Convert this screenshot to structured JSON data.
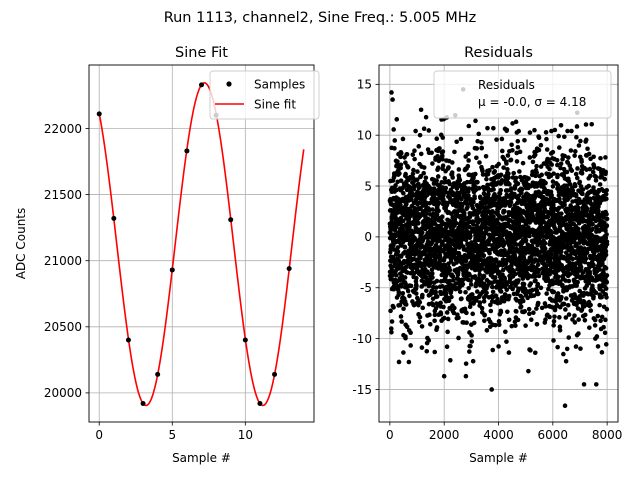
{
  "suptitle": "Run 1113, channel2, Sine Freq.: 5.005 MHz",
  "chart_data": [
    {
      "type": "line",
      "title": "Sine Fit",
      "xlabel": "Sample #",
      "ylabel": "ADC Counts",
      "xlim": [
        -0.7,
        14.7
      ],
      "ylim": [
        19780,
        22480
      ],
      "xticks": [
        0,
        5,
        10
      ],
      "yticks": [
        20000,
        20500,
        21000,
        21500,
        22000
      ],
      "grid": true,
      "legend": {
        "placement": "top-right",
        "entries": [
          "Samples",
          "Sine fit"
        ]
      },
      "series": [
        {
          "name": "Samples",
          "kind": "scatter",
          "color": "#000000",
          "x": [
            0,
            1,
            2,
            3,
            4,
            5,
            6,
            7,
            8,
            9,
            10,
            11,
            12,
            13
          ],
          "y": [
            22110,
            21320,
            20400,
            19920,
            20140,
            20930,
            21830,
            22330,
            22100,
            21310,
            20400,
            19920,
            20140,
            20940
          ]
        },
        {
          "name": "Sine fit",
          "kind": "line",
          "color": "#ff0000",
          "x_range": [
            0,
            14
          ],
          "offset": 21125,
          "amplitude": 1220,
          "period": 8.0,
          "phase_deg": 126
        }
      ]
    },
    {
      "type": "scatter",
      "title": "Residuals",
      "xlabel": "Sample #",
      "ylabel": "",
      "xlim": [
        -400,
        8400
      ],
      "ylim": [
        -18.2,
        16.9
      ],
      "xticks": [
        0,
        2000,
        4000,
        6000,
        8000
      ],
      "yticks": [
        -15,
        -10,
        -5,
        0,
        5,
        10,
        15
      ],
      "grid": true,
      "color": "#000000",
      "n_points": 8000,
      "mean": -0.0,
      "sigma": 4.18,
      "legend": {
        "placement": "top-right",
        "entries": [
          "Residuals",
          "μ = -0.0, σ = 4.18"
        ]
      },
      "outliers": [
        {
          "x": 60,
          "y": 14.2
        },
        {
          "x": 100,
          "y": 13.5
        },
        {
          "x": 2700,
          "y": 14.5
        },
        {
          "x": 1150,
          "y": 12.5
        },
        {
          "x": 6450,
          "y": -16.6
        },
        {
          "x": 3750,
          "y": -15.0
        },
        {
          "x": 7600,
          "y": -14.5
        },
        {
          "x": 7150,
          "y": -14.5
        },
        {
          "x": 2000,
          "y": -13.7
        },
        {
          "x": 2800,
          "y": -13.7
        },
        {
          "x": 5100,
          "y": -13.2
        },
        {
          "x": 6900,
          "y": 12.2
        },
        {
          "x": 700,
          "y": -12.3
        }
      ]
    }
  ]
}
